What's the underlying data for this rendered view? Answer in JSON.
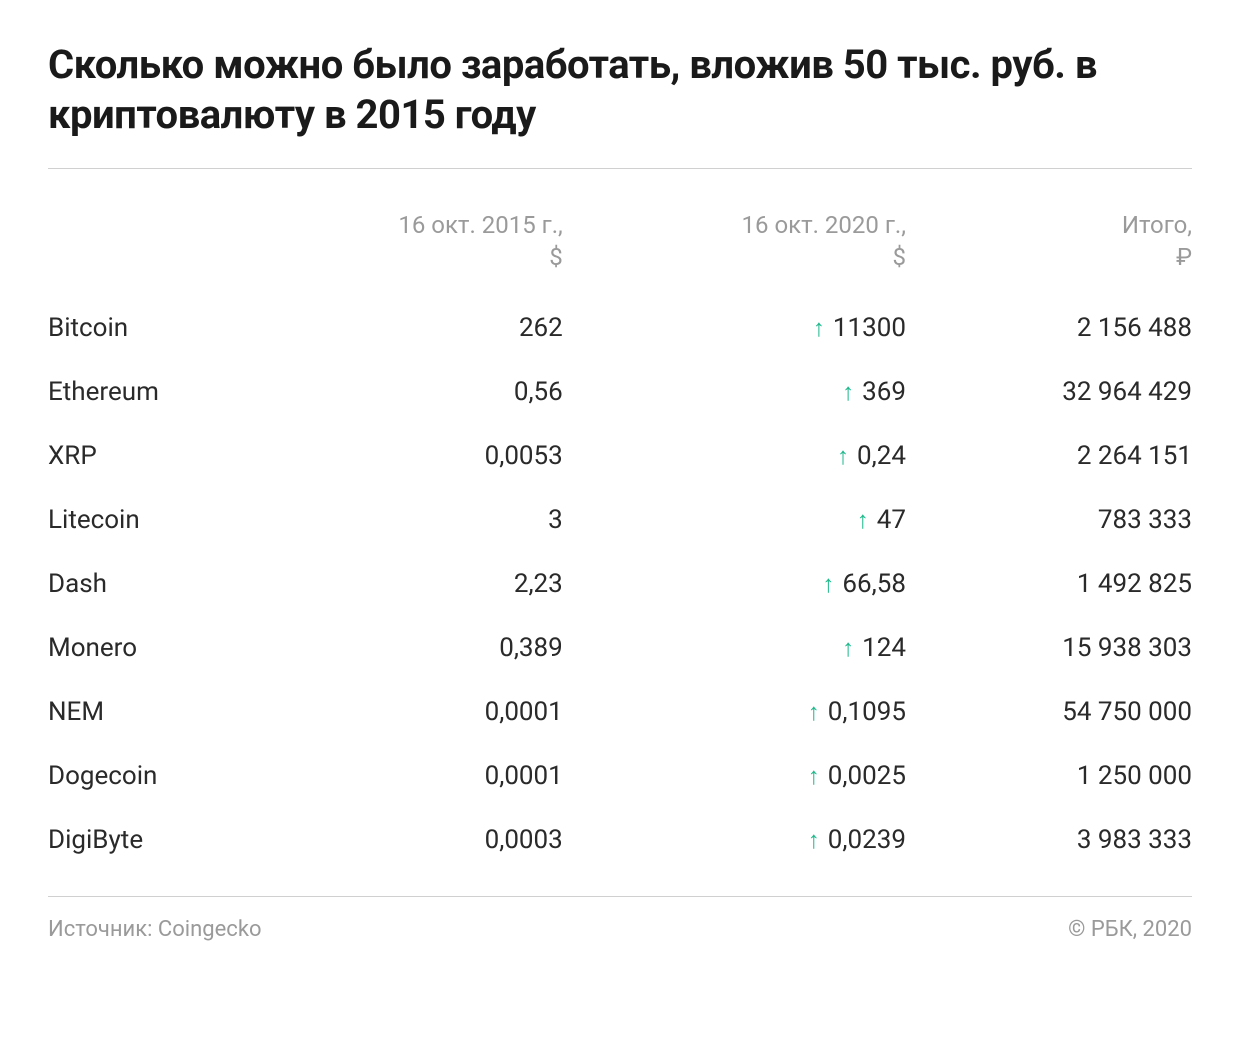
{
  "title": "Сколько можно было заработать, вложив 50 тыс. руб. в криптовалюту в 2015 году",
  "columns": {
    "name": "",
    "price_2015": "16 окт. 2015 г.,\n$",
    "price_2020": "16 окт. 2020 г.,\n$",
    "total": "Итого,\n₽"
  },
  "arrow_color": "#1fb98c",
  "text_color": "#2a2a2a",
  "header_color": "#9a9a9a",
  "rule_color": "#d0d0d0",
  "background_color": "#ffffff",
  "title_fontsize": 40,
  "header_fontsize": 24,
  "cell_fontsize": 26,
  "footer_fontsize": 22,
  "rows": [
    {
      "name": "Bitcoin",
      "price_2015": "262",
      "price_2020": "11300",
      "direction": "up",
      "total": "2 156 488"
    },
    {
      "name": "Ethereum",
      "price_2015": "0,56",
      "price_2020": "369",
      "direction": "up",
      "total": "32 964 429"
    },
    {
      "name": "XRP",
      "price_2015": "0,0053",
      "price_2020": "0,24",
      "direction": "up",
      "total": "2 264 151"
    },
    {
      "name": "Litecoin",
      "price_2015": "3",
      "price_2020": "47",
      "direction": "up",
      "total": "783 333"
    },
    {
      "name": "Dash",
      "price_2015": "2,23",
      "price_2020": "66,58",
      "direction": "up",
      "total": "1 492 825"
    },
    {
      "name": "Monero",
      "price_2015": "0,389",
      "price_2020": "124",
      "direction": "up",
      "total": "15 938 303"
    },
    {
      "name": "NEM",
      "price_2015": "0,0001",
      "price_2020": "0,1095",
      "direction": "up",
      "total": "54 750 000"
    },
    {
      "name": "Dogecoin",
      "price_2015": "0,0001",
      "price_2020": "0,0025",
      "direction": "up",
      "total": "1 250 000"
    },
    {
      "name": "DigiByte",
      "price_2015": "0,0003",
      "price_2020": "0,0239",
      "direction": "up",
      "total": "3 983 333"
    }
  ],
  "footer": {
    "source": "Источник: Coingecko",
    "copyright": "© РБК, 2020"
  }
}
